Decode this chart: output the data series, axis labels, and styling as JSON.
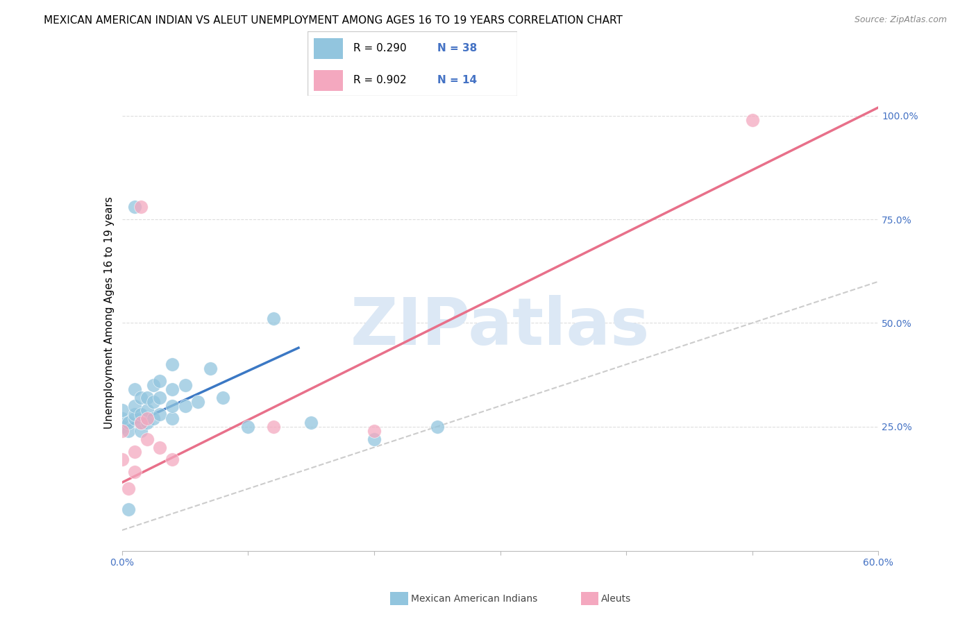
{
  "title": "MEXICAN AMERICAN INDIAN VS ALEUT UNEMPLOYMENT AMONG AGES 16 TO 19 YEARS CORRELATION CHART",
  "source": "Source: ZipAtlas.com",
  "ylabel": "Unemployment Among Ages 16 to 19 years",
  "xlim": [
    0.0,
    0.6
  ],
  "ylim": [
    -0.05,
    1.1
  ],
  "legend_R1": "R = 0.290",
  "legend_N1": "N = 38",
  "legend_R2": "R = 0.902",
  "legend_N2": "N = 14",
  "blue_color": "#92c5de",
  "blue_line_color": "#3b78c4",
  "pink_color": "#f4a8bf",
  "pink_line_color": "#e8708a",
  "ref_line_color": "#cccccc",
  "watermark_color": "#dce8f5",
  "blue_scatter_x": [
    0.0,
    0.0,
    0.0,
    0.005,
    0.005,
    0.01,
    0.01,
    0.01,
    0.01,
    0.015,
    0.015,
    0.015,
    0.015,
    0.02,
    0.02,
    0.02,
    0.025,
    0.025,
    0.025,
    0.03,
    0.03,
    0.03,
    0.04,
    0.04,
    0.04,
    0.04,
    0.05,
    0.05,
    0.06,
    0.07,
    0.08,
    0.1,
    0.12,
    0.15,
    0.2,
    0.25,
    0.005,
    0.01
  ],
  "blue_scatter_y": [
    0.25,
    0.27,
    0.29,
    0.24,
    0.26,
    0.27,
    0.28,
    0.3,
    0.34,
    0.24,
    0.26,
    0.28,
    0.32,
    0.26,
    0.29,
    0.32,
    0.27,
    0.31,
    0.35,
    0.28,
    0.32,
    0.36,
    0.27,
    0.3,
    0.34,
    0.4,
    0.3,
    0.35,
    0.31,
    0.39,
    0.32,
    0.25,
    0.51,
    0.26,
    0.22,
    0.25,
    0.05,
    0.78
  ],
  "pink_scatter_x": [
    0.0,
    0.0,
    0.005,
    0.01,
    0.01,
    0.015,
    0.02,
    0.02,
    0.03,
    0.04,
    0.12,
    0.2,
    0.5,
    0.015
  ],
  "pink_scatter_y": [
    0.24,
    0.17,
    0.1,
    0.14,
    0.19,
    0.26,
    0.22,
    0.27,
    0.2,
    0.17,
    0.25,
    0.24,
    0.99,
    0.78
  ],
  "blue_line_x": [
    0.0,
    0.14
  ],
  "blue_line_y": [
    0.245,
    0.44
  ],
  "pink_line_x": [
    -0.01,
    0.6
  ],
  "pink_line_y": [
    0.1,
    1.02
  ],
  "ref_line_x": [
    0.0,
    0.6
  ],
  "ref_line_y": [
    0.0,
    0.6
  ],
  "title_fontsize": 11,
  "label_fontsize": 11,
  "tick_fontsize": 10,
  "source_fontsize": 9
}
